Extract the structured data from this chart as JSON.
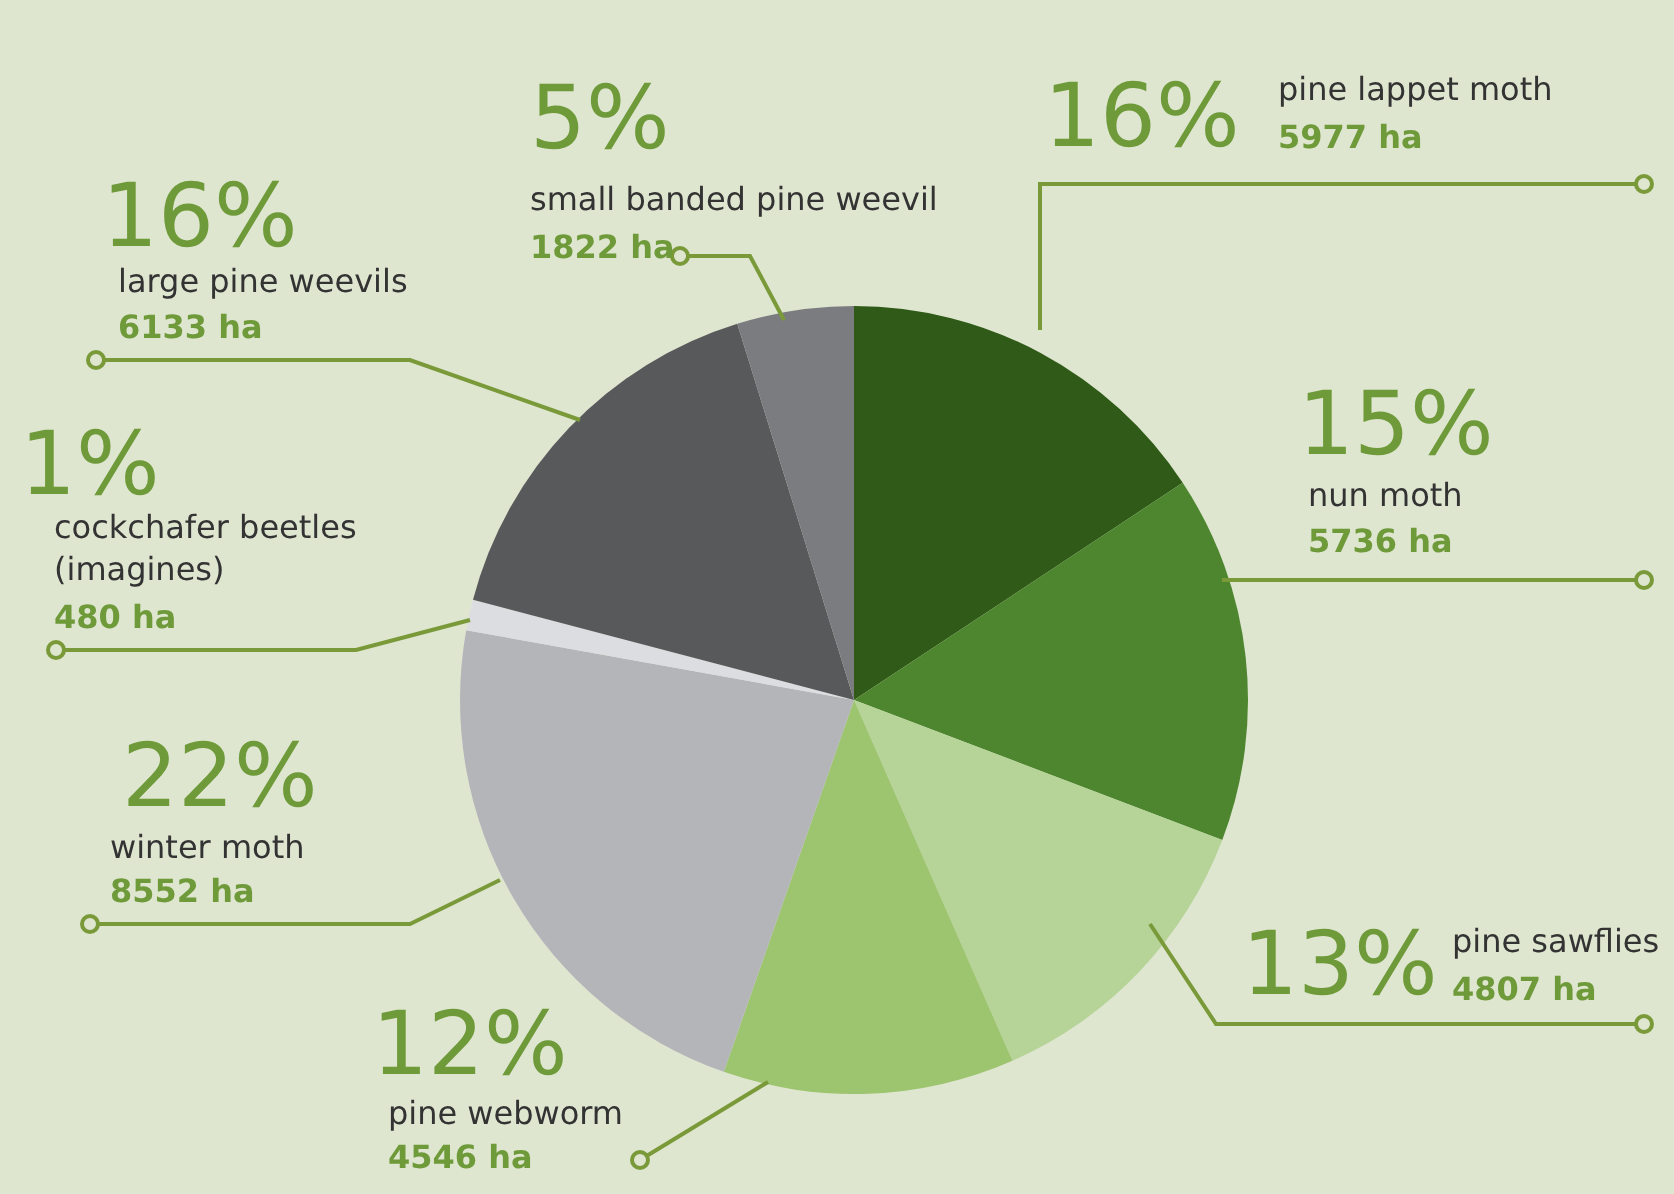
{
  "chart_data": {
    "type": "pie",
    "categories": [
      "pine lappet moth",
      "nun moth",
      "pine sawflies",
      "pine webworm",
      "winter moth",
      "cockchafer beetles\n(imagines)",
      "large pine weevils",
      "small banded pine weevil"
    ],
    "values": [
      5977,
      5736,
      4807,
      4546,
      8552,
      480,
      6133,
      1822
    ],
    "colors": [
      "#2f5a17",
      "#4e8630",
      "#b6d398",
      "#9dc46e",
      "#b4b5b9",
      "#dcdde0",
      "#58595b",
      "#7b7c80"
    ],
    "value_labels": [
      "5977 ha",
      "5736 ha",
      "4807 ha",
      "4546 ha",
      "8552 ha",
      "480 ha",
      "6133 ha",
      "1822 ha"
    ],
    "annotations": [
      "16%",
      "15%",
      "13%",
      "12%",
      "22%",
      "1%",
      "16%",
      "5%"
    ],
    "legend": false
  }
}
